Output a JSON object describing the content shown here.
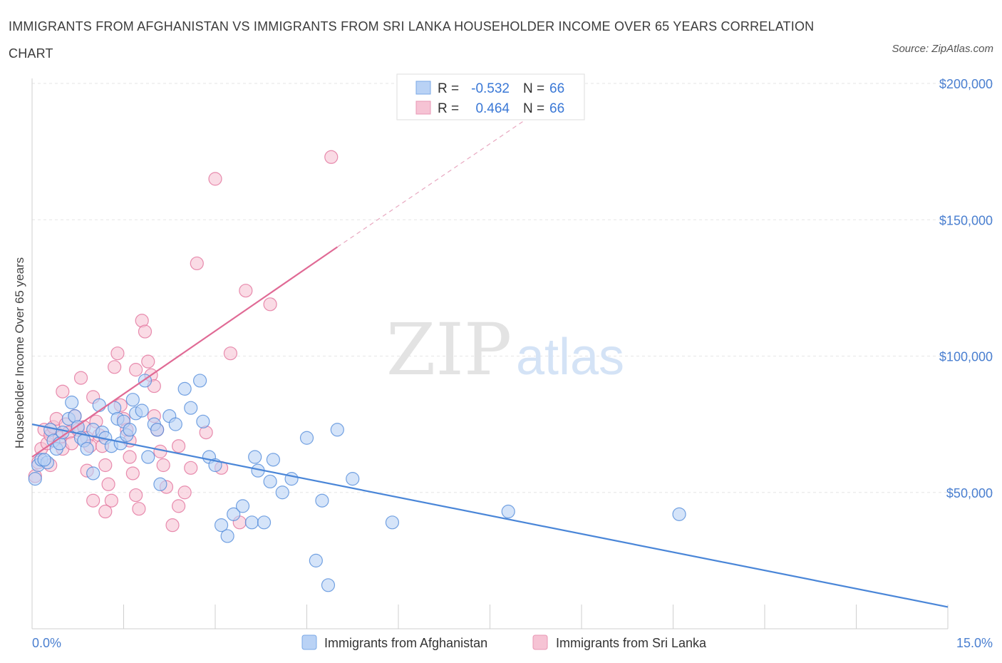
{
  "title": "IMMIGRANTS FROM AFGHANISTAN VS IMMIGRANTS FROM SRI LANKA HOUSEHOLDER INCOME OVER 65 YEARS CORRELATION CHART",
  "source": "Source: ZipAtlas.com",
  "colors": {
    "blue": "#4a86d8",
    "pink": "#e06a95",
    "blue_fill": "#b9d2f5",
    "pink_fill": "#f6c3d4",
    "tick_text": "#4a7fd0"
  },
  "legend": {
    "rows": [
      {
        "r_label": "R =",
        "r_value": "-0.532",
        "n_label": "N =",
        "n_value": "66"
      },
      {
        "r_label": "R =",
        "r_value": "0.464",
        "n_label": "N =",
        "n_value": "66"
      }
    ]
  },
  "bottom_legend": [
    "Immigrants from Afghanistan",
    "Immigrants from Sri Lanka"
  ],
  "watermark": {
    "zip": "ZIP",
    "atlas": "atlas"
  },
  "chart_data": {
    "type": "scatter",
    "xlabel": "",
    "ylabel": "Householder Income Over 65 years",
    "xlim": [
      0,
      15
    ],
    "ylim": [
      0,
      200000
    ],
    "x_tick_labels": [
      "0.0%",
      "15.0%"
    ],
    "y_ticks": [
      {
        "value": 200000,
        "label": "$200,000"
      },
      {
        "value": 150000,
        "label": "$150,000"
      },
      {
        "value": 100000,
        "label": "$100,000"
      },
      {
        "value": 50000,
        "label": "$50,000"
      }
    ],
    "grid": true,
    "series": [
      {
        "name": "Immigrants from Afghanistan",
        "r": -0.532,
        "n": 66,
        "trend": {
          "x": [
            0,
            15
          ],
          "y": [
            75000,
            8000
          ]
        },
        "points": [
          [
            0.05,
            55000
          ],
          [
            0.1,
            60000
          ],
          [
            0.15,
            62000
          ],
          [
            0.25,
            61000
          ],
          [
            0.3,
            73000
          ],
          [
            0.35,
            69000
          ],
          [
            0.4,
            66000
          ],
          [
            0.45,
            68000
          ],
          [
            0.5,
            72000
          ],
          [
            0.6,
            77000
          ],
          [
            0.65,
            83000
          ],
          [
            0.7,
            78000
          ],
          [
            0.75,
            74000
          ],
          [
            0.8,
            70000
          ],
          [
            0.85,
            69000
          ],
          [
            0.9,
            66000
          ],
          [
            1.0,
            73000
          ],
          [
            1.0,
            57000
          ],
          [
            1.1,
            82000
          ],
          [
            1.15,
            72000
          ],
          [
            1.2,
            70000
          ],
          [
            1.3,
            67000
          ],
          [
            1.35,
            81000
          ],
          [
            1.4,
            77000
          ],
          [
            1.45,
            68000
          ],
          [
            1.5,
            76000
          ],
          [
            1.55,
            71000
          ],
          [
            1.6,
            73000
          ],
          [
            1.65,
            84000
          ],
          [
            1.7,
            79000
          ],
          [
            1.8,
            80000
          ],
          [
            1.85,
            91000
          ],
          [
            1.9,
            63000
          ],
          [
            2.0,
            75000
          ],
          [
            2.05,
            73000
          ],
          [
            2.1,
            53000
          ],
          [
            2.25,
            78000
          ],
          [
            2.35,
            75000
          ],
          [
            2.5,
            88000
          ],
          [
            2.6,
            81000
          ],
          [
            2.75,
            91000
          ],
          [
            2.8,
            76000
          ],
          [
            2.9,
            63000
          ],
          [
            3.0,
            60000
          ],
          [
            3.1,
            38000
          ],
          [
            3.2,
            34000
          ],
          [
            3.3,
            42000
          ],
          [
            3.45,
            45000
          ],
          [
            3.6,
            39000
          ],
          [
            3.65,
            63000
          ],
          [
            3.7,
            58000
          ],
          [
            3.8,
            39000
          ],
          [
            3.9,
            54000
          ],
          [
            3.95,
            62000
          ],
          [
            4.1,
            50000
          ],
          [
            4.25,
            55000
          ],
          [
            4.5,
            70000
          ],
          [
            4.65,
            25000
          ],
          [
            4.75,
            47000
          ],
          [
            4.85,
            16000
          ],
          [
            5.0,
            73000
          ],
          [
            5.25,
            55000
          ],
          [
            5.9,
            39000
          ],
          [
            7.8,
            43000
          ],
          [
            10.6,
            42000
          ],
          [
            0.2,
            62000
          ]
        ]
      },
      {
        "name": "Immigrants from Sri Lanka",
        "r": 0.464,
        "n": 66,
        "trend": {
          "x": [
            0,
            5
          ],
          "y": [
            63000,
            140000
          ],
          "dashed_to": {
            "x": 8.5,
            "y": 193000
          }
        },
        "points": [
          [
            0.05,
            56000
          ],
          [
            0.1,
            61000
          ],
          [
            0.15,
            66000
          ],
          [
            0.2,
            73000
          ],
          [
            0.25,
            68000
          ],
          [
            0.3,
            71000
          ],
          [
            0.35,
            74000
          ],
          [
            0.4,
            77000
          ],
          [
            0.45,
            70000
          ],
          [
            0.5,
            66000
          ],
          [
            0.55,
            75000
          ],
          [
            0.6,
            72000
          ],
          [
            0.65,
            68000
          ],
          [
            0.7,
            78000
          ],
          [
            0.75,
            73000
          ],
          [
            0.8,
            92000
          ],
          [
            0.85,
            74000
          ],
          [
            0.9,
            70000
          ],
          [
            0.95,
            67000
          ],
          [
            1.0,
            85000
          ],
          [
            1.05,
            76000
          ],
          [
            1.1,
            71000
          ],
          [
            1.15,
            67000
          ],
          [
            1.2,
            60000
          ],
          [
            1.25,
            53000
          ],
          [
            1.3,
            47000
          ],
          [
            1.35,
            96000
          ],
          [
            1.4,
            101000
          ],
          [
            1.45,
            82000
          ],
          [
            1.5,
            77000
          ],
          [
            1.55,
            73000
          ],
          [
            1.6,
            69000
          ],
          [
            1.65,
            57000
          ],
          [
            1.7,
            49000
          ],
          [
            1.75,
            44000
          ],
          [
            1.8,
            113000
          ],
          [
            1.85,
            109000
          ],
          [
            1.9,
            98000
          ],
          [
            1.95,
            93000
          ],
          [
            2.0,
            89000
          ],
          [
            2.05,
            73000
          ],
          [
            2.1,
            65000
          ],
          [
            2.15,
            60000
          ],
          [
            2.2,
            52000
          ],
          [
            2.3,
            38000
          ],
          [
            2.4,
            45000
          ],
          [
            2.5,
            50000
          ],
          [
            2.6,
            59000
          ],
          [
            2.7,
            134000
          ],
          [
            2.85,
            72000
          ],
          [
            3.0,
            165000
          ],
          [
            3.1,
            59000
          ],
          [
            3.25,
            101000
          ],
          [
            3.4,
            39000
          ],
          [
            3.5,
            124000
          ],
          [
            3.9,
            119000
          ],
          [
            4.9,
            173000
          ],
          [
            0.5,
            87000
          ],
          [
            0.9,
            58000
          ],
          [
            1.0,
            47000
          ],
          [
            1.2,
            43000
          ],
          [
            1.6,
            63000
          ],
          [
            1.7,
            95000
          ],
          [
            2.0,
            78000
          ],
          [
            2.4,
            67000
          ],
          [
            0.3,
            60000
          ]
        ]
      }
    ]
  }
}
